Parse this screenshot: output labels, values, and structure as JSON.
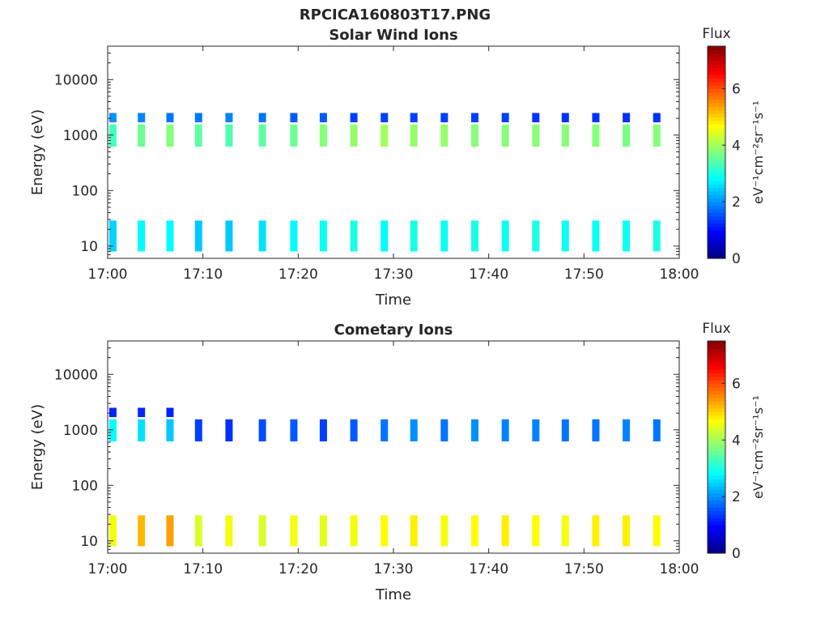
{
  "figure": {
    "file_title": "RPCICA160803T17.PNG"
  },
  "chart_data": [
    {
      "type": "heatmap",
      "title": "Solar Wind Ions",
      "xlabel": "Time",
      "ylabel": "Energy (eV)",
      "yscale": "log",
      "ylim": [
        6,
        40000
      ],
      "xlim": [
        "17:00",
        "18:00"
      ],
      "x_ticks": [
        "17:00",
        "17:10",
        "17:20",
        "17:30",
        "17:40",
        "17:50",
        "18:00"
      ],
      "y_ticks": [
        {
          "value": 10,
          "label": "10"
        },
        {
          "value": 100,
          "label": "100"
        },
        {
          "value": 1000,
          "label": "1000"
        },
        {
          "value": 10000,
          "label": "10000"
        }
      ],
      "colorbar": {
        "title": "Flux",
        "unit_label": "eV⁻¹cm⁻²sr⁻¹s⁻¹",
        "range": [
          0,
          7.5
        ],
        "ticks": [
          "0",
          "2",
          "4",
          "6"
        ],
        "colormap": "jet"
      },
      "grid": false,
      "bursts": {
        "times_min": [
          0.5,
          3.5,
          6.5,
          9.5,
          12.7,
          16.2,
          19.5,
          22.6,
          25.8,
          29.0,
          32.1,
          35.3,
          38.5,
          41.7,
          44.9,
          48.0,
          51.2,
          54.4,
          57.6
        ],
        "main_energy_eV": 1000,
        "main_flux": [
          3.3,
          3.6,
          3.8,
          3.5,
          3.4,
          3.5,
          3.6,
          3.8,
          3.9,
          4.0,
          3.9,
          3.9,
          3.8,
          3.8,
          3.8,
          3.8,
          3.8,
          3.7,
          3.8
        ],
        "secondary_energy_eV": 2000,
        "secondary_flux": [
          2.0,
          1.9,
          1.8,
          1.8,
          1.9,
          1.8,
          1.6,
          1.6,
          1.4,
          1.4,
          1.4,
          1.4,
          1.4,
          1.4,
          1.3,
          1.3,
          1.3,
          1.3,
          1.3
        ],
        "low_energy_eV": 16,
        "low_flux": [
          2.5,
          2.8,
          2.8,
          2.4,
          2.4,
          2.6,
          2.8,
          2.9,
          3.0,
          2.8,
          3.0,
          2.9,
          3.0,
          2.9,
          3.0,
          2.9,
          2.9,
          2.9,
          3.0
        ]
      }
    },
    {
      "type": "heatmap",
      "title": "Cometary Ions",
      "xlabel": "Time",
      "ylabel": "Energy (eV)",
      "yscale": "log",
      "ylim": [
        6,
        40000
      ],
      "xlim": [
        "17:00",
        "18:00"
      ],
      "x_ticks": [
        "17:00",
        "17:10",
        "17:20",
        "17:30",
        "17:40",
        "17:50",
        "18:00"
      ],
      "y_ticks": [
        {
          "value": 10,
          "label": "10"
        },
        {
          "value": 100,
          "label": "100"
        },
        {
          "value": 1000,
          "label": "1000"
        },
        {
          "value": 10000,
          "label": "10000"
        }
      ],
      "colorbar": {
        "title": "Flux",
        "unit_label": "eV⁻¹cm⁻²sr⁻¹s⁻¹",
        "range": [
          0,
          7.5
        ],
        "ticks": [
          "0",
          "2",
          "4",
          "6"
        ],
        "colormap": "jet"
      },
      "grid": false,
      "bursts": {
        "times_min": [
          0.5,
          3.5,
          6.5,
          9.5,
          12.7,
          16.2,
          19.5,
          22.6,
          25.8,
          29.0,
          32.1,
          35.3,
          38.5,
          41.7,
          44.9,
          48.0,
          51.2,
          54.4,
          57.6
        ],
        "main_energy_eV": 1000,
        "main_flux": [
          2.8,
          2.6,
          2.4,
          1.4,
          1.3,
          1.5,
          1.6,
          1.4,
          1.6,
          1.8,
          2.0,
          1.8,
          2.0,
          1.9,
          1.9,
          1.8,
          1.8,
          1.9,
          1.8
        ],
        "secondary_energy_eV": 2000,
        "secondary_flux": [
          1.2,
          1.2,
          1.2,
          0,
          0,
          0,
          0,
          0,
          0,
          0,
          0,
          0,
          0,
          0,
          0,
          0,
          0,
          0,
          0
        ],
        "low_energy_eV": 16,
        "low_flux": [
          4.6,
          5.2,
          5.4,
          4.4,
          4.6,
          4.4,
          4.6,
          4.5,
          4.6,
          4.7,
          4.8,
          4.6,
          4.7,
          4.8,
          4.7,
          4.6,
          4.8,
          4.8,
          4.7
        ]
      }
    }
  ]
}
